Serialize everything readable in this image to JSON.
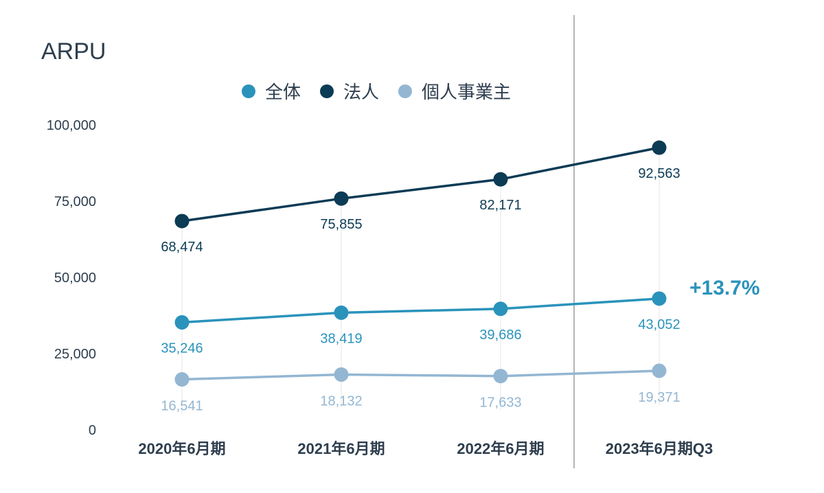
{
  "chart_data": {
    "type": "line",
    "title": "ARPU",
    "categories": [
      "2020年6月期",
      "2021年6月期",
      "2022年6月期",
      "2023年6月期Q3"
    ],
    "ylim": [
      0,
      100000
    ],
    "yticks": [
      "0",
      "25,000",
      "50,000",
      "75,000",
      "100,000"
    ],
    "ytick_values": [
      0,
      25000,
      50000,
      75000,
      100000
    ],
    "grid": false,
    "legend_position": "top",
    "series": [
      {
        "name": "全体",
        "color": "#2a93bb",
        "values": [
          35246,
          38419,
          39686,
          43052
        ],
        "labels": [
          "35,246",
          "38,419",
          "39,686",
          "43,052"
        ]
      },
      {
        "name": "法人",
        "color": "#0b3b55",
        "values": [
          68474,
          75855,
          82171,
          92563
        ],
        "labels": [
          "68,474",
          "75,855",
          "82,171",
          "92,563"
        ]
      },
      {
        "name": "個人事業主",
        "color": "#93b6d2",
        "values": [
          16541,
          18132,
          17633,
          19371
        ],
        "labels": [
          "16,541",
          "18,132",
          "17,633",
          "19,371"
        ]
      }
    ],
    "annotation": "+13.7%"
  }
}
